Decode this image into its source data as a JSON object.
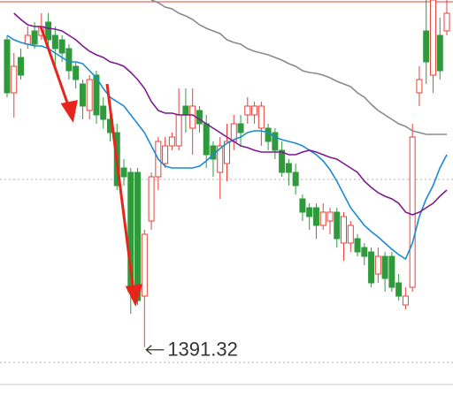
{
  "chart_data": {
    "type": "candlestick",
    "ylim": [
      1371,
      1489.5
    ],
    "up_color": "#e8403a",
    "down_color": "#2e9a3c",
    "open": [
      1478.25,
      1463.25,
      1473.25,
      1477,
      1480.75,
      1479.5,
      1483.25,
      1479.5,
      1478.25,
      1475.75,
      1470.75,
      1465.75,
      1458.25,
      1468.25,
      1459.5,
      1455.75,
      1452,
      1442,
      1440.75,
      1440.75,
      1405.75,
      1427,
      1439.5,
      1443.25,
      1448.25,
      1448.25,
      1459.5,
      1453.25,
      1458.25,
      1454.5,
      1448.25,
      1440.75,
      1443.25,
      1449.5,
      1454.5,
      1457,
      1457,
      1453.25,
      1453.25,
      1452,
      1447,
      1443.25,
      1440.75,
      1433.25,
      1430.75,
      1430.75,
      1425.75,
      1427,
      1429.5,
      1420.75,
      1420.75,
      1422,
      1419.5,
      1418.25,
      1412,
      1417,
      1417,
      1409.5,
      1403.25,
      1408.25,
      1463.25,
      1480.75,
      1468.25,
      1479.5,
      1480.75
    ],
    "high": [
      1479.5,
      1474.5,
      1475.75,
      1482,
      1483.25,
      1485.75,
      1485.75,
      1482,
      1479.5,
      1477,
      1472,
      1467,
      1468.25,
      1469.5,
      1462,
      1458.25,
      1454.5,
      1444.5,
      1442,
      1442,
      1424.5,
      1440.75,
      1450.75,
      1450.75,
      1452,
      1464.5,
      1464.5,
      1464.5,
      1459.5,
      1457,
      1449.5,
      1450.75,
      1454.5,
      1457,
      1457,
      1462,
      1460.75,
      1460.75,
      1454.5,
      1453.25,
      1449.5,
      1444.5,
      1443.25,
      1434.5,
      1432,
      1432,
      1432,
      1430.75,
      1430.75,
      1429.5,
      1427,
      1423.25,
      1420.75,
      1419.5,
      1419.5,
      1418.25,
      1418.25,
      1412,
      1408.25,
      1454.5,
      1470.75,
      1489.5,
      1489.5,
      1484.5,
      1489.5
    ],
    "low": [
      1462,
      1456.25,
      1467,
      1475.75,
      1475.75,
      1478.25,
      1475.75,
      1470.75,
      1472,
      1467,
      1464.5,
      1455.75,
      1455.75,
      1454.5,
      1453.25,
      1449.5,
      1435.75,
      1437,
      1400.75,
      1403.25,
      1391.32,
      1424.5,
      1435.75,
      1442,
      1447,
      1447,
      1452,
      1445.75,
      1452,
      1442,
      1439.5,
      1433.25,
      1438.25,
      1447,
      1448.25,
      1454.5,
      1454.5,
      1448.25,
      1447,
      1444.5,
      1439.5,
      1437,
      1434.5,
      1427,
      1424.5,
      1422,
      1424.5,
      1423.25,
      1419.5,
      1415.75,
      1418.25,
      1417,
      1414.5,
      1408.25,
      1409.5,
      1407,
      1407,
      1404.5,
      1402,
      1407,
      1459.5,
      1465.75,
      1463.25,
      1467,
      1479.5
    ],
    "close": [
      1463.25,
      1470.75,
      1468.25,
      1479.5,
      1477,
      1482,
      1478.25,
      1475.75,
      1474.5,
      1469.5,
      1467,
      1459.5,
      1467,
      1457,
      1455.75,
      1452,
      1437,
      1439.5,
      1407,
      1404.5,
      1423.25,
      1439.5,
      1449.5,
      1448.25,
      1450.75,
      1457,
      1457,
      1459.5,
      1454.5,
      1445.75,
      1444.5,
      1448.25,
      1449.5,
      1454.5,
      1452,
      1459.5,
      1459.5,
      1459.5,
      1449.5,
      1447,
      1440.75,
      1440.75,
      1437,
      1429.5,
      1428.25,
      1425.75,
      1429.5,
      1429.5,
      1422,
      1428.25,
      1425.75,
      1418.25,
      1417,
      1409.5,
      1417,
      1410.75,
      1408.25,
      1405.75,
      1405.75,
      1450.75,
      1467,
      1472,
      1489.5,
      1469.5,
      1485.75
    ],
    "series": [
      {
        "color": "#1a8ad4",
        "values": [
          1479.5,
          1478.25,
          1477.5,
          1477,
          1476.5,
          1476.5,
          1475.75,
          1474.5,
          1473.25,
          1472,
          1472,
          1471.5,
          1469.5,
          1467.5,
          1464.5,
          1462,
          1460.75,
          1459.5,
          1457,
          1454.5,
          1452,
          1448.25,
          1444.5,
          1442.5,
          1442,
          1442,
          1442,
          1442,
          1442.5,
          1444,
          1445.75,
          1447.5,
          1449,
          1450,
          1450.75,
          1452,
          1452.5,
          1452.5,
          1452,
          1450.75,
          1450,
          1449.5,
          1449,
          1448.25,
          1447,
          1445.75,
          1444,
          1441.5,
          1438.25,
          1434.5,
          1430.75,
          1428.25,
          1425.75,
          1424,
          1422.5,
          1420.75,
          1419,
          1417.5,
          1416.25,
          1420.75,
          1428.25,
          1433.25,
          1437,
          1442,
          1445.75
        ]
      },
      {
        "color": "#7b1c8e",
        "values": [
          null,
          1485.75,
          1484,
          1482.5,
          1482,
          1482,
          1481.5,
          1481.25,
          1480.75,
          1479.5,
          1478.25,
          1476.5,
          1475,
          1474,
          1473.25,
          1472,
          1471.5,
          1470.75,
          1469,
          1467,
          1464.5,
          1460.75,
          1458.25,
          1457.5,
          1457.5,
          1457,
          1457,
          1457,
          1455.75,
          1454.5,
          1453.25,
          1452,
          1450.75,
          1449.5,
          1448.25,
          1447.75,
          1447,
          1446.5,
          1446.5,
          1446.5,
          1446.5,
          1445.75,
          1445.75,
          1446.5,
          1447,
          1446.5,
          1445.75,
          1445,
          1444.5,
          1443.25,
          1442,
          1440.75,
          1438.25,
          1436.5,
          1435,
          1434,
          1433.25,
          1432,
          1429.5,
          1428.75,
          1429.5,
          1430.75,
          1432,
          1434,
          1435.75
        ]
      },
      {
        "color": "#8a8a8a",
        "values": [
          null,
          null,
          null,
          null,
          null,
          null,
          null,
          null,
          null,
          null,
          null,
          null,
          null,
          null,
          null,
          null,
          null,
          null,
          null,
          null,
          null,
          1489.5,
          1488.75,
          1487.5,
          1487,
          1485.75,
          1485,
          1484,
          1482.5,
          1481.5,
          1480.75,
          1480,
          1478.25,
          1477.5,
          1477,
          1475.75,
          1475,
          1474.5,
          1474,
          1473.25,
          1472.5,
          1471.5,
          1470.75,
          1469.5,
          1469,
          1468.75,
          1468.25,
          1467.5,
          1466.5,
          1465.75,
          1465,
          1463.25,
          1462,
          1460,
          1458.25,
          1457,
          1455.75,
          1454.5,
          1453.75,
          1452.5,
          1452,
          1451.5,
          1451.5,
          1451.5,
          1451.5
        ]
      }
    ],
    "ref_lines": [
      {
        "value": 1489,
        "color": "#e8403a",
        "style": "solid"
      },
      {
        "value": 1438.75,
        "color": "#b0b0b0",
        "style": "dotted"
      },
      {
        "value": 1387,
        "color": "#b0b0b0",
        "style": "dotted"
      }
    ]
  }
}
